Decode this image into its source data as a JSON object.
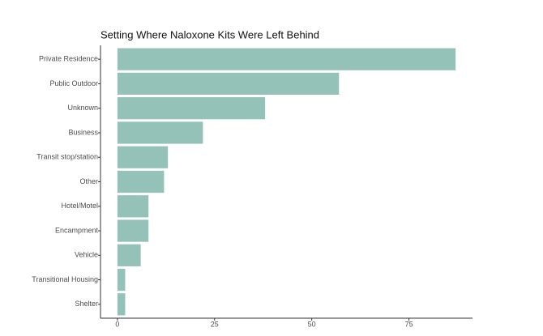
{
  "chart_data": {
    "type": "bar",
    "orientation": "horizontal",
    "title": "Setting Where Naloxone Kits Were Left Behind",
    "categories": [
      "Private Residence",
      "Public Outdoor",
      "Unknown",
      "Business",
      "Transit stop/station",
      "Other",
      "Hotel/Motel",
      "Encampment",
      "Vehicle",
      "Transitional Housing",
      "Shelter"
    ],
    "values": [
      87,
      57,
      38,
      22,
      13,
      12,
      8,
      8,
      6,
      2,
      2
    ],
    "color": "#95c2b8",
    "xlim": [
      -4.35,
      91.35
    ],
    "xticks": [
      0,
      25,
      50,
      75
    ],
    "grid": false
  }
}
